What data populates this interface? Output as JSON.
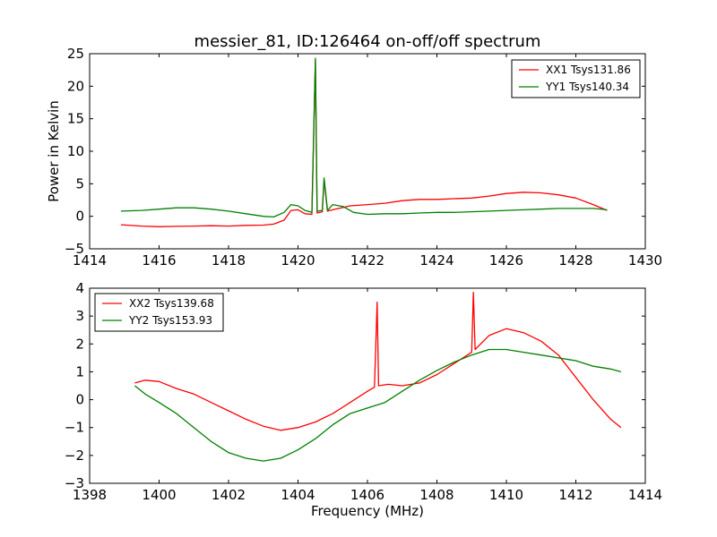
{
  "chart_data": [
    {
      "type": "line",
      "title": "messier_81, ID:126464 on-off/off spectrum",
      "xlabel": "",
      "ylabel": "Power in Kelvin",
      "xlim": [
        1414,
        1430
      ],
      "ylim": [
        -5,
        25
      ],
      "xticks": [
        1414,
        1416,
        1418,
        1420,
        1422,
        1424,
        1426,
        1428,
        1430
      ],
      "yticks": [
        -5,
        0,
        5,
        10,
        15,
        20,
        25
      ],
      "legend_position": "upper right",
      "series": [
        {
          "name": "XX1 Tsys131.86",
          "color": "#ff0000",
          "points": [
            [
              1414.9,
              -1.3
            ],
            [
              1415.5,
              -1.5
            ],
            [
              1416.0,
              -1.6
            ],
            [
              1416.5,
              -1.55
            ],
            [
              1417.0,
              -1.5
            ],
            [
              1417.5,
              -1.45
            ],
            [
              1418.0,
              -1.5
            ],
            [
              1418.5,
              -1.4
            ],
            [
              1419.0,
              -1.35
            ],
            [
              1419.3,
              -1.2
            ],
            [
              1419.6,
              -0.6
            ],
            [
              1419.8,
              0.9
            ],
            [
              1420.0,
              1.0
            ],
            [
              1420.2,
              0.4
            ],
            [
              1420.4,
              0.3
            ],
            [
              1420.5,
              24.0
            ],
            [
              1420.55,
              0.5
            ],
            [
              1420.7,
              0.7
            ],
            [
              1420.75,
              5.6
            ],
            [
              1420.85,
              0.8
            ],
            [
              1421.0,
              1.0
            ],
            [
              1421.5,
              1.6
            ],
            [
              1422.0,
              1.8
            ],
            [
              1422.5,
              2.0
            ],
            [
              1423.0,
              2.4
            ],
            [
              1423.5,
              2.6
            ],
            [
              1424.0,
              2.6
            ],
            [
              1424.5,
              2.7
            ],
            [
              1425.0,
              2.8
            ],
            [
              1425.5,
              3.1
            ],
            [
              1426.0,
              3.5
            ],
            [
              1426.5,
              3.7
            ],
            [
              1427.0,
              3.6
            ],
            [
              1427.5,
              3.3
            ],
            [
              1428.0,
              2.8
            ],
            [
              1428.5,
              1.8
            ],
            [
              1428.9,
              0.9
            ]
          ]
        },
        {
          "name": "YY1 Tsys140.34",
          "color": "#008000",
          "points": [
            [
              1414.9,
              0.8
            ],
            [
              1415.5,
              0.9
            ],
            [
              1416.0,
              1.1
            ],
            [
              1416.5,
              1.3
            ],
            [
              1417.0,
              1.3
            ],
            [
              1417.5,
              1.1
            ],
            [
              1418.0,
              0.8
            ],
            [
              1418.5,
              0.4
            ],
            [
              1419.0,
              0.0
            ],
            [
              1419.3,
              -0.1
            ],
            [
              1419.6,
              0.6
            ],
            [
              1419.8,
              1.8
            ],
            [
              1420.0,
              1.6
            ],
            [
              1420.2,
              0.9
            ],
            [
              1420.4,
              0.6
            ],
            [
              1420.5,
              24.3
            ],
            [
              1420.55,
              0.8
            ],
            [
              1420.7,
              0.9
            ],
            [
              1420.75,
              5.9
            ],
            [
              1420.85,
              0.9
            ],
            [
              1421.0,
              1.8
            ],
            [
              1421.3,
              1.5
            ],
            [
              1421.6,
              0.6
            ],
            [
              1422.0,
              0.3
            ],
            [
              1422.5,
              0.4
            ],
            [
              1423.0,
              0.4
            ],
            [
              1423.5,
              0.5
            ],
            [
              1424.0,
              0.6
            ],
            [
              1424.5,
              0.6
            ],
            [
              1425.0,
              0.7
            ],
            [
              1425.5,
              0.8
            ],
            [
              1426.0,
              0.9
            ],
            [
              1426.5,
              1.0
            ],
            [
              1427.0,
              1.1
            ],
            [
              1427.5,
              1.2
            ],
            [
              1428.0,
              1.2
            ],
            [
              1428.5,
              1.2
            ],
            [
              1428.9,
              1.0
            ]
          ]
        }
      ]
    },
    {
      "type": "line",
      "title": "",
      "xlabel": "Frequency (MHz)",
      "ylabel": "",
      "xlim": [
        1398,
        1414
      ],
      "ylim": [
        -3,
        4
      ],
      "xticks": [
        1398,
        1400,
        1402,
        1404,
        1406,
        1408,
        1410,
        1412,
        1414
      ],
      "yticks": [
        -3,
        -2,
        -1,
        0,
        1,
        2,
        3,
        4
      ],
      "legend_position": "upper left",
      "series": [
        {
          "name": "XX2 Tsys139.68",
          "color": "#ff0000",
          "points": [
            [
              1399.3,
              0.6
            ],
            [
              1399.6,
              0.7
            ],
            [
              1400.0,
              0.65
            ],
            [
              1400.5,
              0.4
            ],
            [
              1401.0,
              0.2
            ],
            [
              1401.5,
              -0.1
            ],
            [
              1402.0,
              -0.4
            ],
            [
              1402.5,
              -0.7
            ],
            [
              1403.0,
              -0.95
            ],
            [
              1403.5,
              -1.1
            ],
            [
              1404.0,
              -1.0
            ],
            [
              1404.5,
              -0.8
            ],
            [
              1405.0,
              -0.5
            ],
            [
              1405.5,
              -0.1
            ],
            [
              1406.0,
              0.3
            ],
            [
              1406.2,
              0.45
            ],
            [
              1406.28,
              3.5
            ],
            [
              1406.32,
              0.5
            ],
            [
              1406.6,
              0.55
            ],
            [
              1407.0,
              0.5
            ],
            [
              1407.5,
              0.6
            ],
            [
              1408.0,
              0.9
            ],
            [
              1408.5,
              1.3
            ],
            [
              1409.0,
              1.7
            ],
            [
              1409.05,
              3.85
            ],
            [
              1409.1,
              1.8
            ],
            [
              1409.5,
              2.3
            ],
            [
              1410.0,
              2.55
            ],
            [
              1410.5,
              2.4
            ],
            [
              1411.0,
              2.1
            ],
            [
              1411.5,
              1.6
            ],
            [
              1412.0,
              0.8
            ],
            [
              1412.5,
              0.0
            ],
            [
              1413.0,
              -0.7
            ],
            [
              1413.3,
              -1.0
            ]
          ]
        },
        {
          "name": "YY2 Tsys153.93",
          "color": "#008000",
          "points": [
            [
              1399.3,
              0.5
            ],
            [
              1399.6,
              0.2
            ],
            [
              1400.0,
              -0.1
            ],
            [
              1400.5,
              -0.5
            ],
            [
              1401.0,
              -1.0
            ],
            [
              1401.5,
              -1.5
            ],
            [
              1402.0,
              -1.9
            ],
            [
              1402.5,
              -2.1
            ],
            [
              1403.0,
              -2.2
            ],
            [
              1403.5,
              -2.1
            ],
            [
              1404.0,
              -1.8
            ],
            [
              1404.5,
              -1.4
            ],
            [
              1405.0,
              -0.9
            ],
            [
              1405.5,
              -0.5
            ],
            [
              1406.0,
              -0.3
            ],
            [
              1406.5,
              -0.1
            ],
            [
              1407.0,
              0.3
            ],
            [
              1407.5,
              0.7
            ],
            [
              1408.0,
              1.05
            ],
            [
              1408.5,
              1.35
            ],
            [
              1409.0,
              1.6
            ],
            [
              1409.5,
              1.8
            ],
            [
              1410.0,
              1.8
            ],
            [
              1410.5,
              1.7
            ],
            [
              1411.0,
              1.6
            ],
            [
              1411.5,
              1.5
            ],
            [
              1412.0,
              1.4
            ],
            [
              1412.5,
              1.2
            ],
            [
              1413.0,
              1.1
            ],
            [
              1413.3,
              1.0
            ]
          ]
        }
      ]
    }
  ]
}
